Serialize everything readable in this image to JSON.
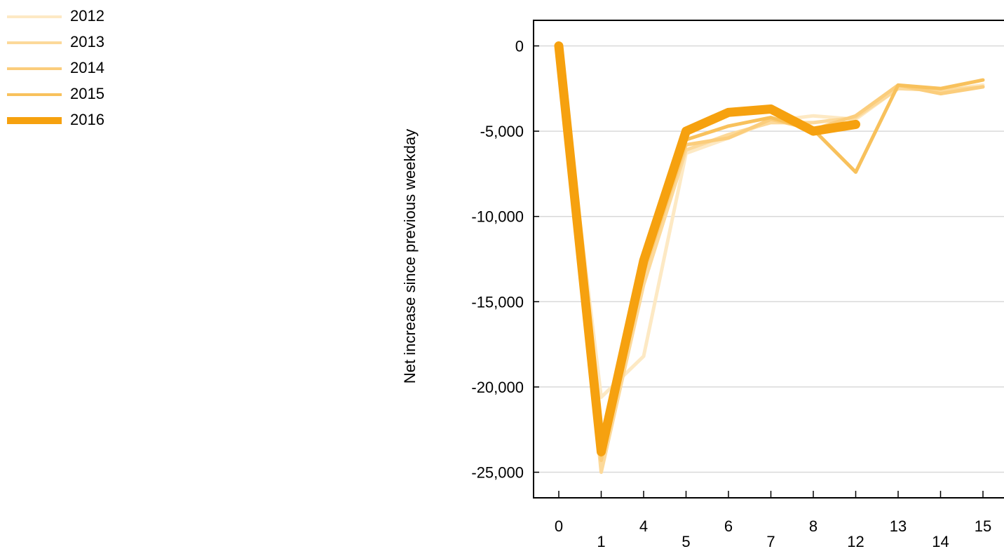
{
  "chart_data": {
    "type": "line",
    "xlabel": "",
    "ylabel": "Net increase since previous weekday",
    "ylim": [
      -26500,
      1500
    ],
    "yticks": [
      0,
      -5000,
      -10000,
      -15000,
      -20000,
      -25000
    ],
    "ytick_labels": [
      "0",
      "-5,000",
      "-10,000",
      "-15,000",
      "-20,000",
      "-25,000"
    ],
    "categories": [
      "0",
      "1",
      "4",
      "5",
      "6",
      "7",
      "8",
      "12",
      "13",
      "14",
      "15"
    ],
    "grid": "horizontal",
    "legend_position": "top-left",
    "series": [
      {
        "name": "2012",
        "color": "#fde9c4",
        "width": 5,
        "values": [
          0,
          -20600,
          -18200,
          -6300,
          -5400,
          -4400,
          -4100,
          -4300,
          -2500,
          -2600,
          -2300
        ]
      },
      {
        "name": "2013",
        "color": "#fcd99a",
        "width": 5,
        "values": [
          0,
          -25000,
          -14000,
          -6100,
          -5200,
          -4500,
          -4500,
          -4200,
          -2500,
          -2600,
          -2400
        ]
      },
      {
        "name": "2014",
        "color": "#fbcd7c",
        "width": 5,
        "values": [
          0,
          -24300,
          -13300,
          -5800,
          -5400,
          -4300,
          -4900,
          -4100,
          -2300,
          -2800,
          -2400
        ]
      },
      {
        "name": "2015",
        "color": "#f8c15c",
        "width": 5,
        "values": [
          0,
          -24000,
          -12900,
          -5500,
          -4700,
          -4200,
          -4900,
          -7400,
          -2300,
          -2500,
          -2000
        ]
      },
      {
        "name": "2016",
        "color": "#f6a10f",
        "width": 13,
        "values": [
          0,
          -23800,
          -12600,
          -5000,
          -3900,
          -3700,
          -5000,
          -4600,
          null,
          null,
          null
        ]
      }
    ]
  }
}
